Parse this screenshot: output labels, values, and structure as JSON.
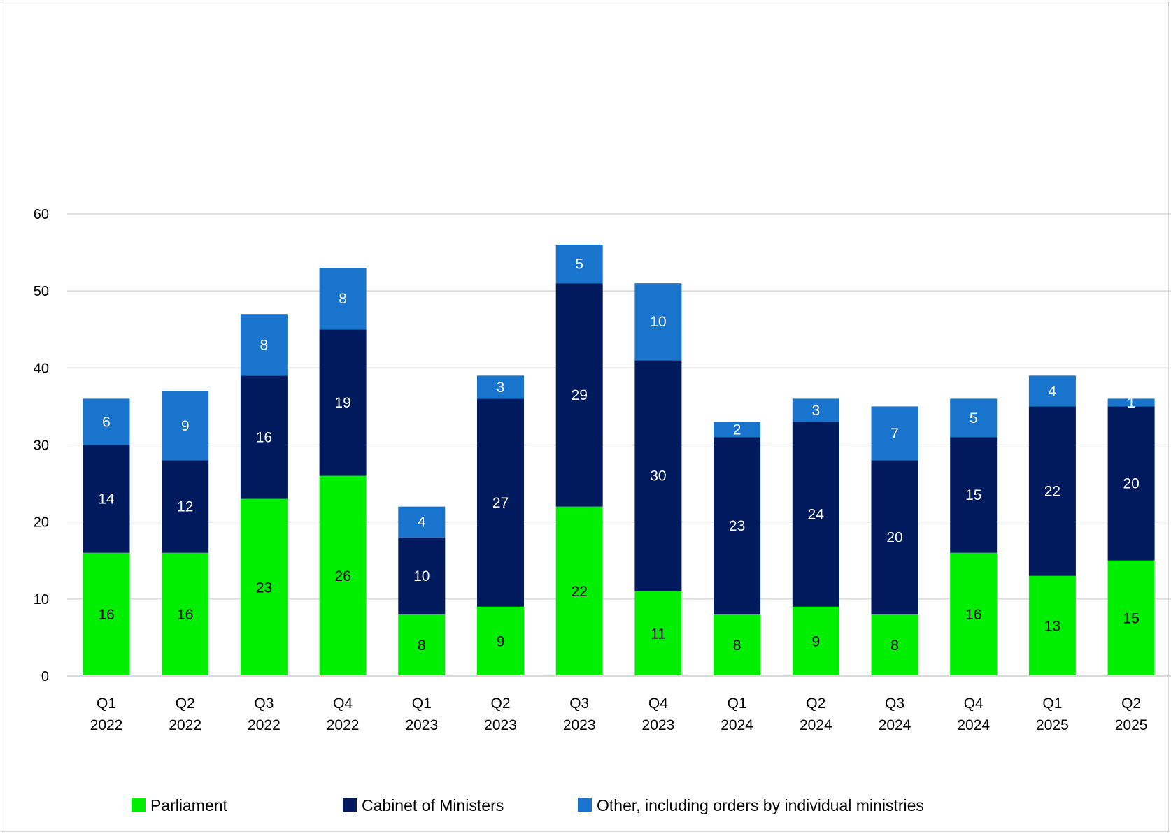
{
  "chart_data": {
    "type": "bar",
    "stacked": true,
    "title": "",
    "xlabel": "",
    "ylabel": "",
    "ylim": [
      0,
      60
    ],
    "yticks": [
      0,
      10,
      20,
      30,
      40,
      50,
      60
    ],
    "grid": true,
    "legend_position": "bottom",
    "categories": [
      [
        "Q1",
        "2022"
      ],
      [
        "Q2",
        "2022"
      ],
      [
        "Q3",
        "2022"
      ],
      [
        "Q4",
        "2022"
      ],
      [
        "Q1",
        "2023"
      ],
      [
        "Q2",
        "2023"
      ],
      [
        "Q3",
        "2023"
      ],
      [
        "Q4",
        "2023"
      ],
      [
        "Q1",
        "2024"
      ],
      [
        "Q2",
        "2024"
      ],
      [
        "Q3",
        "2024"
      ],
      [
        "Q4",
        "2024"
      ],
      [
        "Q1",
        "2025"
      ],
      [
        "Q2",
        "2025"
      ]
    ],
    "series": [
      {
        "name": "Parliament",
        "color": "#00ee00",
        "label_color": "#000000",
        "values": [
          16,
          16,
          23,
          26,
          8,
          9,
          22,
          11,
          8,
          9,
          8,
          16,
          13,
          15
        ]
      },
      {
        "name": "Cabinet of Ministers",
        "color": "#001a5e",
        "label_color": "#ffffff",
        "values": [
          14,
          12,
          16,
          19,
          10,
          27,
          29,
          30,
          23,
          24,
          20,
          15,
          22,
          20
        ]
      },
      {
        "name": "Other, including orders by individual ministries",
        "color": "#1874cd",
        "label_color": "#ffffff",
        "values": [
          6,
          9,
          8,
          8,
          4,
          3,
          5,
          10,
          2,
          3,
          7,
          5,
          4,
          1
        ]
      }
    ]
  }
}
